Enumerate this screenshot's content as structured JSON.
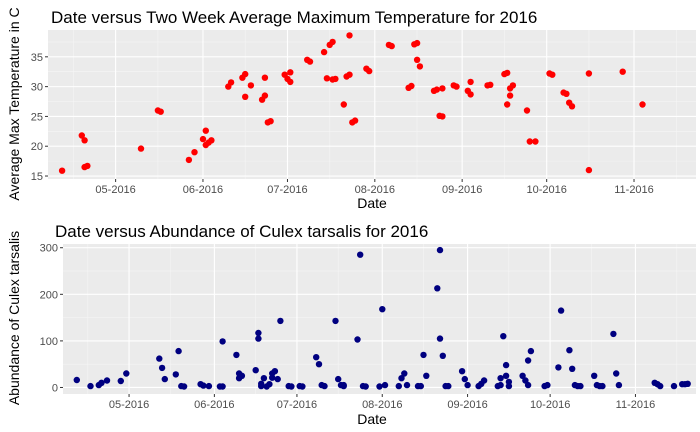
{
  "chart_data": [
    {
      "type": "scatter",
      "title": "Date versus Two Week Average Maximum Temperature for 2016",
      "xlabel": "Date",
      "ylabel": "Average Max Temperature in C",
      "x_tick_labels": [
        "05-2016",
        "06-2016",
        "07-2016",
        "08-2016",
        "09-2016",
        "10-2016",
        "11-2016"
      ],
      "y_ticks": [
        15,
        20,
        25,
        30,
        35
      ],
      "ylim": [
        14.5,
        39.5
      ],
      "xlim": [
        "2016-04-07",
        "2016-11-23"
      ],
      "grid": true,
      "point_color": "#ff0000",
      "series": [
        {
          "points": [
            [
              "2016-04-12",
              15.9
            ],
            [
              "2016-04-19",
              21.8
            ],
            [
              "2016-04-20",
              21.0
            ],
            [
              "2016-04-20",
              16.5
            ],
            [
              "2016-04-21",
              16.7
            ],
            [
              "2016-05-10",
              19.6
            ],
            [
              "2016-05-16",
              26.0
            ],
            [
              "2016-05-17",
              25.8
            ],
            [
              "2016-05-27",
              17.7
            ],
            [
              "2016-05-29",
              19.0
            ],
            [
              "2016-06-01",
              21.2
            ],
            [
              "2016-06-02",
              22.6
            ],
            [
              "2016-06-02",
              20.2
            ],
            [
              "2016-06-03",
              20.6
            ],
            [
              "2016-06-04",
              21.0
            ],
            [
              "2016-06-10",
              30.0
            ],
            [
              "2016-06-11",
              30.7
            ],
            [
              "2016-06-15",
              31.5
            ],
            [
              "2016-06-16",
              32.1
            ],
            [
              "2016-06-16",
              28.3
            ],
            [
              "2016-06-18",
              30.2
            ],
            [
              "2016-06-22",
              27.8
            ],
            [
              "2016-06-23",
              28.5
            ],
            [
              "2016-06-23",
              31.5
            ],
            [
              "2016-06-24",
              24.0
            ],
            [
              "2016-06-25",
              24.2
            ],
            [
              "2016-06-30",
              32.0
            ],
            [
              "2016-07-01",
              31.3
            ],
            [
              "2016-07-02",
              32.4
            ],
            [
              "2016-07-02",
              30.8
            ],
            [
              "2016-07-08",
              34.5
            ],
            [
              "2016-07-09",
              34.2
            ],
            [
              "2016-07-14",
              35.8
            ],
            [
              "2016-07-15",
              31.4
            ],
            [
              "2016-07-16",
              37.0
            ],
            [
              "2016-07-17",
              37.5
            ],
            [
              "2016-07-17",
              31.2
            ],
            [
              "2016-07-18",
              31.3
            ],
            [
              "2016-07-21",
              27.0
            ],
            [
              "2016-07-22",
              31.7
            ],
            [
              "2016-07-23",
              32.0
            ],
            [
              "2016-07-23",
              38.6
            ],
            [
              "2016-07-24",
              24.0
            ],
            [
              "2016-07-25",
              24.3
            ],
            [
              "2016-07-29",
              33.0
            ],
            [
              "2016-07-30",
              32.6
            ],
            [
              "2016-08-06",
              37.0
            ],
            [
              "2016-08-07",
              36.8
            ],
            [
              "2016-08-13",
              29.8
            ],
            [
              "2016-08-14",
              30.1
            ],
            [
              "2016-08-15",
              37.1
            ],
            [
              "2016-08-16",
              37.3
            ],
            [
              "2016-08-16",
              34.5
            ],
            [
              "2016-08-17",
              33.4
            ],
            [
              "2016-08-22",
              29.3
            ],
            [
              "2016-08-23",
              29.5
            ],
            [
              "2016-08-24",
              25.1
            ],
            [
              "2016-08-25",
              25.0
            ],
            [
              "2016-08-25",
              29.7
            ],
            [
              "2016-08-29",
              30.2
            ],
            [
              "2016-08-30",
              30.0
            ],
            [
              "2016-09-03",
              29.3
            ],
            [
              "2016-09-04",
              28.7
            ],
            [
              "2016-09-04",
              30.8
            ],
            [
              "2016-09-10",
              30.2
            ],
            [
              "2016-09-11",
              30.3
            ],
            [
              "2016-09-16",
              32.1
            ],
            [
              "2016-09-17",
              32.3
            ],
            [
              "2016-09-17",
              27.0
            ],
            [
              "2016-09-18",
              29.7
            ],
            [
              "2016-09-18",
              28.5
            ],
            [
              "2016-09-19",
              30.2
            ],
            [
              "2016-09-24",
              26.0
            ],
            [
              "2016-09-25",
              20.8
            ],
            [
              "2016-09-27",
              20.8
            ],
            [
              "2016-10-02",
              32.2
            ],
            [
              "2016-10-03",
              32.0
            ],
            [
              "2016-10-07",
              29.0
            ],
            [
              "2016-10-08",
              28.8
            ],
            [
              "2016-10-09",
              27.3
            ],
            [
              "2016-10-10",
              26.7
            ],
            [
              "2016-10-16",
              32.2
            ],
            [
              "2016-10-16",
              16.0
            ],
            [
              "2016-10-28",
              32.5
            ],
            [
              "2016-11-04",
              27.0
            ]
          ]
        }
      ]
    },
    {
      "type": "scatter",
      "title": "Date versus Abundance of Culex tarsalis for 2016",
      "xlabel": "Date",
      "ylabel": "Abundance of Culex tarsalis",
      "x_tick_labels": [
        "05-2016",
        "06-2016",
        "07-2016",
        "08-2016",
        "09-2016",
        "10-2016",
        "11-2016"
      ],
      "y_ticks": [
        0,
        100,
        200,
        300
      ],
      "ylim": [
        -14,
        308
      ],
      "xlim": [
        "2016-04-07",
        "2016-11-23"
      ],
      "grid": true,
      "point_color": "#000080",
      "series": [
        {
          "points": [
            [
              "2016-04-12",
              16
            ],
            [
              "2016-04-17",
              3
            ],
            [
              "2016-04-20",
              5
            ],
            [
              "2016-04-21",
              10
            ],
            [
              "2016-04-23",
              15
            ],
            [
              "2016-04-28",
              14
            ],
            [
              "2016-04-30",
              30
            ],
            [
              "2016-05-12",
              62
            ],
            [
              "2016-05-13",
              42
            ],
            [
              "2016-05-14",
              18
            ],
            [
              "2016-05-18",
              28
            ],
            [
              "2016-05-19",
              78
            ],
            [
              "2016-05-20",
              3
            ],
            [
              "2016-05-21",
              2
            ],
            [
              "2016-05-27",
              7
            ],
            [
              "2016-05-28",
              4
            ],
            [
              "2016-05-30",
              3
            ],
            [
              "2016-06-03",
              2
            ],
            [
              "2016-06-04",
              2
            ],
            [
              "2016-06-04",
              99
            ],
            [
              "2016-06-09",
              70
            ],
            [
              "2016-06-10",
              20
            ],
            [
              "2016-06-10",
              30
            ],
            [
              "2016-06-11",
              25
            ],
            [
              "2016-06-16",
              37
            ],
            [
              "2016-06-17",
              105
            ],
            [
              "2016-06-17",
              117
            ],
            [
              "2016-06-18",
              3
            ],
            [
              "2016-06-18",
              8
            ],
            [
              "2016-06-19",
              20
            ],
            [
              "2016-06-20",
              2
            ],
            [
              "2016-06-21",
              7
            ],
            [
              "2016-06-22",
              30
            ],
            [
              "2016-06-22",
              21
            ],
            [
              "2016-06-23",
              35
            ],
            [
              "2016-06-24",
              18
            ],
            [
              "2016-06-25",
              143
            ],
            [
              "2016-06-28",
              3
            ],
            [
              "2016-06-29",
              2
            ],
            [
              "2016-07-02",
              3
            ],
            [
              "2016-07-03",
              2
            ],
            [
              "2016-07-08",
              65
            ],
            [
              "2016-07-09",
              50
            ],
            [
              "2016-07-10",
              5
            ],
            [
              "2016-07-11",
              3
            ],
            [
              "2016-07-15",
              143
            ],
            [
              "2016-07-16",
              18
            ],
            [
              "2016-07-17",
              5
            ],
            [
              "2016-07-18",
              3
            ],
            [
              "2016-07-18",
              5
            ],
            [
              "2016-07-23",
              103
            ],
            [
              "2016-07-24",
              285
            ],
            [
              "2016-07-25",
              3
            ],
            [
              "2016-07-26",
              2
            ],
            [
              "2016-07-31",
              2
            ],
            [
              "2016-08-01",
              168
            ],
            [
              "2016-08-02",
              5
            ],
            [
              "2016-08-07",
              3
            ],
            [
              "2016-08-08",
              20
            ],
            [
              "2016-08-09",
              30
            ],
            [
              "2016-08-10",
              5
            ],
            [
              "2016-08-14",
              3
            ],
            [
              "2016-08-15",
              3
            ],
            [
              "2016-08-16",
              70
            ],
            [
              "2016-08-17",
              25
            ],
            [
              "2016-08-21",
              213
            ],
            [
              "2016-08-22",
              295
            ],
            [
              "2016-08-22",
              105
            ],
            [
              "2016-08-23",
              68
            ],
            [
              "2016-08-24",
              3
            ],
            [
              "2016-08-25",
              3
            ],
            [
              "2016-08-30",
              35
            ],
            [
              "2016-08-31",
              18
            ],
            [
              "2016-09-01",
              5
            ],
            [
              "2016-09-05",
              3
            ],
            [
              "2016-09-06",
              8
            ],
            [
              "2016-09-07",
              15
            ],
            [
              "2016-09-12",
              3
            ],
            [
              "2016-09-13",
              5
            ],
            [
              "2016-09-13",
              20
            ],
            [
              "2016-09-14",
              110
            ],
            [
              "2016-09-15",
              48
            ],
            [
              "2016-09-15",
              25
            ],
            [
              "2016-09-16",
              12
            ],
            [
              "2016-09-16",
              3
            ],
            [
              "2016-09-21",
              25
            ],
            [
              "2016-09-22",
              15
            ],
            [
              "2016-09-23",
              5
            ],
            [
              "2016-09-23",
              58
            ],
            [
              "2016-09-24",
              78
            ],
            [
              "2016-09-29",
              3
            ],
            [
              "2016-09-30",
              5
            ],
            [
              "2016-10-04",
              43
            ],
            [
              "2016-10-05",
              165
            ],
            [
              "2016-10-08",
              80
            ],
            [
              "2016-10-09",
              40
            ],
            [
              "2016-10-10",
              5
            ],
            [
              "2016-10-11",
              3
            ],
            [
              "2016-10-12",
              3
            ],
            [
              "2016-10-17",
              25
            ],
            [
              "2016-10-18",
              5
            ],
            [
              "2016-10-19",
              3
            ],
            [
              "2016-10-20",
              3
            ],
            [
              "2016-10-24",
              115
            ],
            [
              "2016-10-25",
              30
            ],
            [
              "2016-10-26",
              5
            ],
            [
              "2016-11-08",
              10
            ],
            [
              "2016-11-09",
              7
            ],
            [
              "2016-11-10",
              3
            ],
            [
              "2016-11-15",
              3
            ],
            [
              "2016-11-18",
              7
            ],
            [
              "2016-11-19",
              7
            ],
            [
              "2016-11-20",
              8
            ]
          ]
        }
      ]
    }
  ]
}
